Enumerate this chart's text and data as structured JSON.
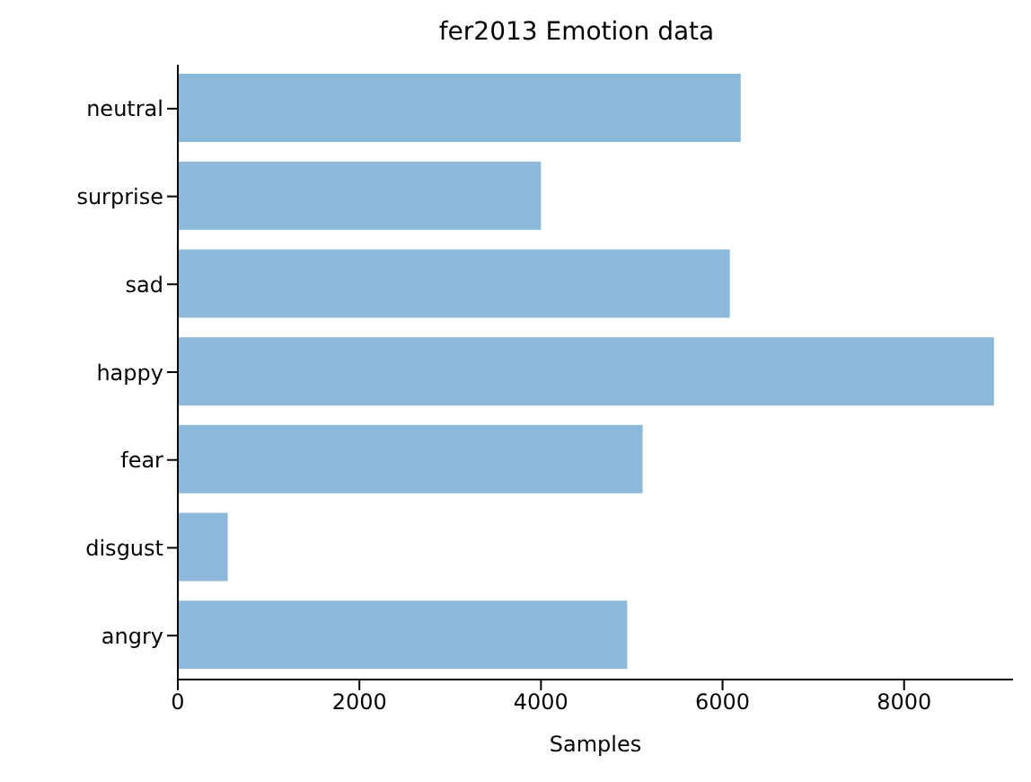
{
  "chart_data": {
    "type": "bar",
    "orientation": "horizontal",
    "title": "fer2013 Emotion data",
    "xlabel": "Samples",
    "categories": [
      "neutral",
      "surprise",
      "sad",
      "happy",
      "fear",
      "disgust",
      "angry"
    ],
    "values": [
      6200,
      4000,
      6080,
      8990,
      5120,
      550,
      4950
    ],
    "color": "#8cb9da",
    "xlim": [
      0,
      9200
    ],
    "xticks": [
      0,
      2000,
      4000,
      6000,
      8000
    ],
    "grid": false,
    "legend": false
  }
}
